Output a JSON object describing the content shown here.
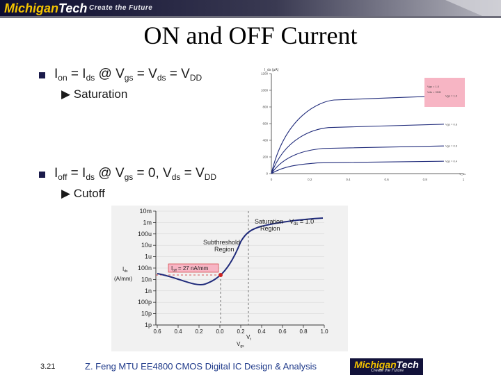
{
  "header": {
    "brand_left": "Michigan",
    "brand_right": "Tech",
    "slogan": "Create the Future"
  },
  "slide": {
    "title": "ON and OFF Current"
  },
  "bullets": [
    {
      "main_tokens": [
        "I",
        "on",
        " = I",
        "ds",
        " @ V",
        "gs",
        " = V",
        "ds",
        " = V",
        "DD"
      ],
      "sub": "▶ Saturation"
    },
    {
      "main_tokens": [
        "I",
        "off",
        " = I",
        "ds",
        " @ V",
        "gs",
        " = 0, V",
        "ds",
        " = V",
        "DD"
      ],
      "sub": "▶ Cutoff"
    }
  ],
  "iv_chart": {
    "y_unit": "I_ds (μA)",
    "y_ticks": [
      "1200",
      "1000",
      "800",
      "600",
      "400",
      "200",
      "0"
    ],
    "x_ticks": [
      "0",
      "0.2",
      "0.4",
      "0.6",
      "0.8",
      "1"
    ],
    "x_unit": "V_ds",
    "curves": [
      {
        "label": "Vgs = 1.0",
        "level": 1.0
      },
      {
        "label": "Vgs = 0.8",
        "level": 0.8
      },
      {
        "label": "Vgs = 0.6",
        "level": 0.6
      },
      {
        "label": "Vgs = 0.4",
        "level": 0.4
      }
    ],
    "legend_lines": [
      "Vgs = 1.0",
      "Vds = VDD"
    ]
  },
  "log_chart": {
    "y_ticks": [
      "10m",
      "1m",
      "100u",
      "10u",
      "1u",
      "100n",
      "10n",
      "1n",
      "100p",
      "10p",
      "1p"
    ],
    "x_ticks": [
      "0.6",
      "0.4",
      "0.2",
      "0.0",
      "0.2",
      "0.4",
      "0.6",
      "0.8",
      "1.0"
    ],
    "ylabel_line1": "I",
    "ylabel_sub": "ds",
    "ylabel_line2": "(A/mm)",
    "xlabel_top": "V",
    "xlabel_top_sub": "t",
    "xlabel_bottom": "V",
    "xlabel_bottom_sub": "gs",
    "saturation_label_1": "Saturation",
    "saturation_label_2": "Region",
    "vds_label": "V",
    "vds_sub": "ds",
    "vds_value": " = 1.0",
    "subthreshold_label_1": "Subthreshold",
    "subthreshold_label_2": "Region",
    "ioff_label": "I",
    "ioff_sub": "off",
    "ioff_value": " = 27 nA/mm"
  },
  "footer": {
    "page_number": "3.21",
    "text": "Z. Feng MTU EE4800 CMOS Digital IC Design & Analysis",
    "logo_brand_left": "Michigan",
    "logo_brand_right": "Tech",
    "logo_slogan": "Create the Future"
  },
  "colors": {
    "header_dark": "#14143c",
    "brand_yellow": "#f2c200",
    "curve_blue": "#1f2a7a",
    "ioff_red": "#cc2222",
    "footer_text": "#1f3a8a"
  }
}
